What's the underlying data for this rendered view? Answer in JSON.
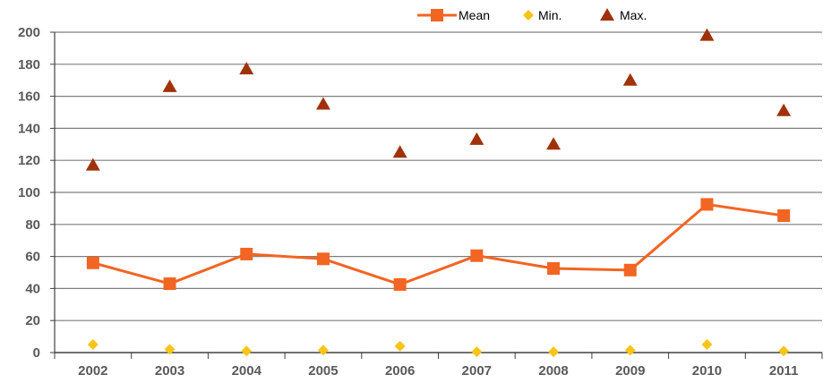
{
  "chart_data": {
    "type": "line",
    "categories": [
      "2002",
      "2003",
      "2004",
      "2005",
      "2006",
      "2007",
      "2008",
      "2009",
      "2010",
      "2011"
    ],
    "ylim": [
      0,
      200
    ],
    "yticks": [
      0,
      20,
      40,
      60,
      80,
      100,
      120,
      140,
      160,
      180,
      200
    ],
    "grid": true,
    "legend_position": "top-right",
    "series": [
      {
        "name": "Mean",
        "marker": "square",
        "line": true,
        "color": "#f26522",
        "values": [
          56,
          43,
          61.5,
          58.5,
          42.5,
          60.5,
          52.5,
          51.5,
          92.5,
          85.5
        ]
      },
      {
        "name": "Min.",
        "marker": "diamond",
        "line": false,
        "color": "#f5c518",
        "values": [
          5,
          2,
          1,
          1.5,
          4,
          0.5,
          0.5,
          1.5,
          5,
          1
        ]
      },
      {
        "name": "Max.",
        "marker": "triangle",
        "line": false,
        "color": "#a0320a",
        "values": [
          117,
          166,
          177,
          155,
          125,
          133,
          130,
          170,
          198,
          151
        ]
      }
    ]
  }
}
